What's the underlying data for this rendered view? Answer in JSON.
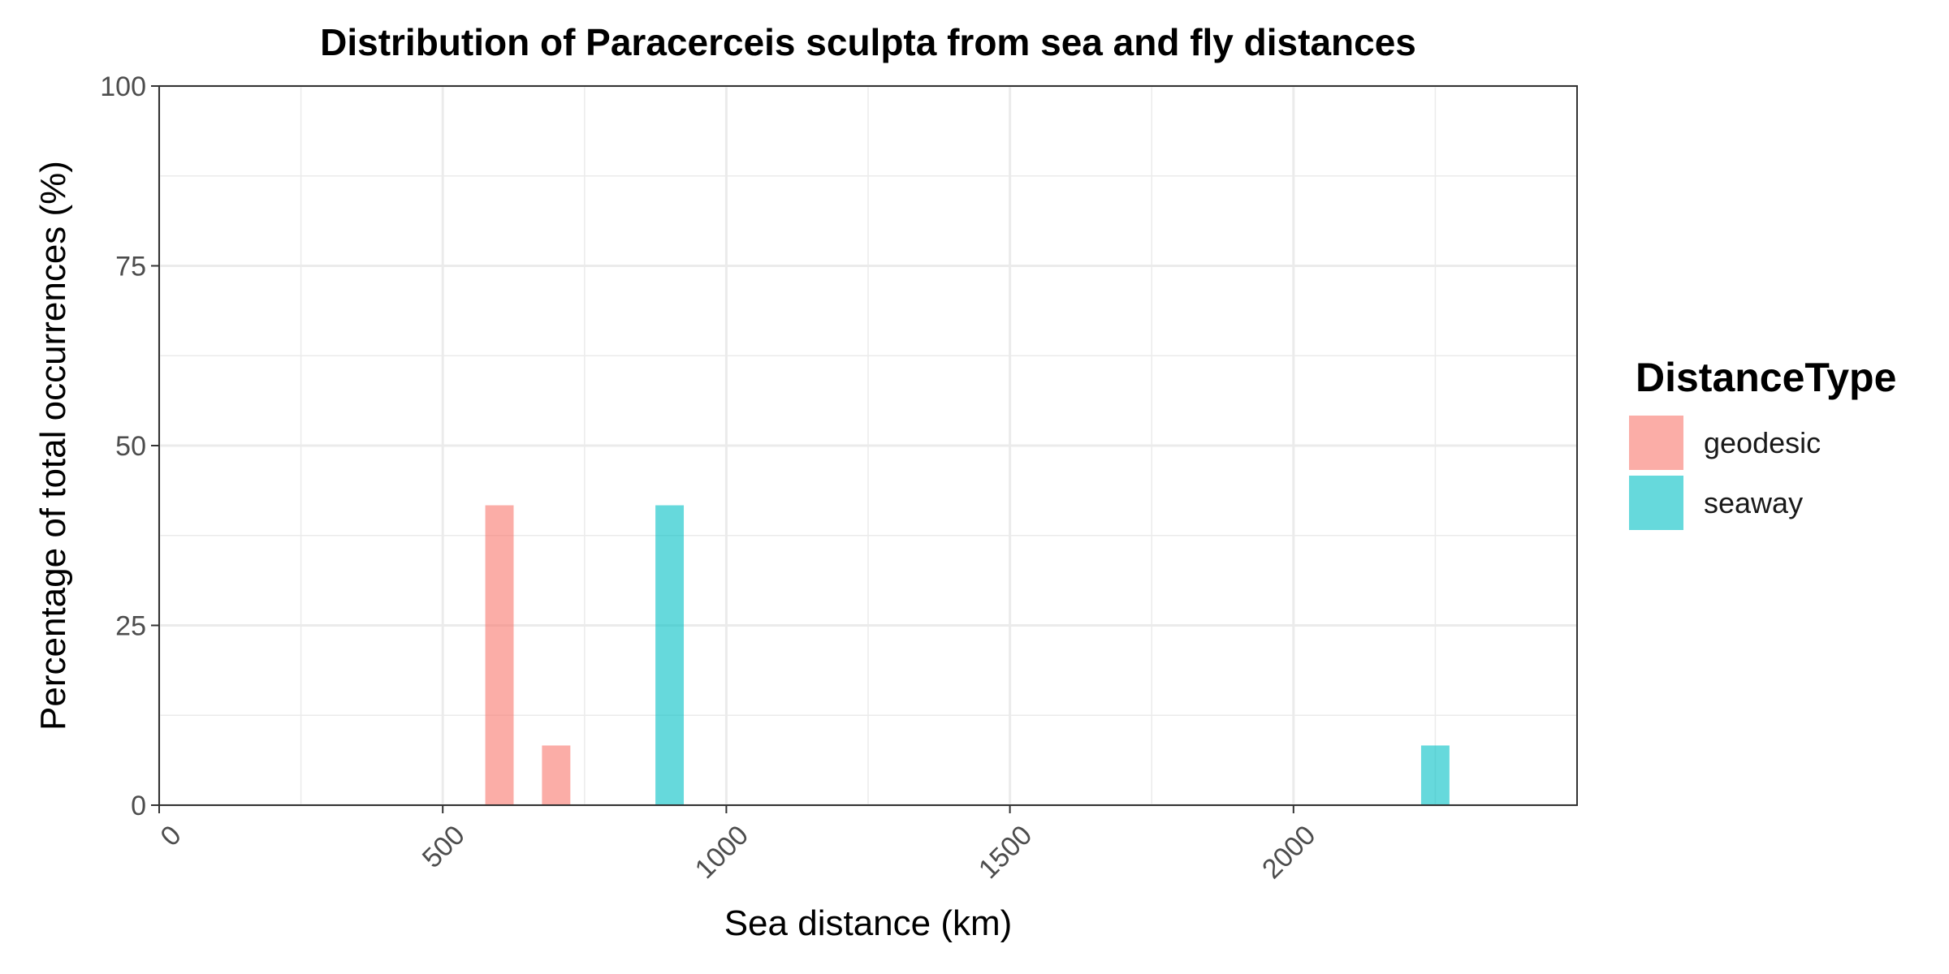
{
  "chart_data": {
    "type": "bar",
    "title": "Distribution of Paracerceis sculpta from sea and fly distances",
    "xlabel": "Sea distance (km)",
    "ylabel": "Percentage of total occurrences (%)",
    "xlim": [
      0,
      2500
    ],
    "ylim": [
      0,
      100
    ],
    "x_ticks": [
      "0",
      "500",
      "1000",
      "1500",
      "2000"
    ],
    "y_ticks": [
      "0",
      "25",
      "50",
      "75",
      "100"
    ],
    "grid": true,
    "legend": {
      "title": "DistanceType",
      "position": "right"
    },
    "bin_width": 50,
    "series": [
      {
        "name": "geodesic",
        "color": "#F8766D",
        "x": [
          600,
          700
        ],
        "values": [
          41.7,
          8.3
        ]
      },
      {
        "name": "seaway",
        "color": "#00BFC4",
        "x": [
          900,
          2250
        ],
        "values": [
          41.7,
          8.3
        ]
      }
    ]
  }
}
